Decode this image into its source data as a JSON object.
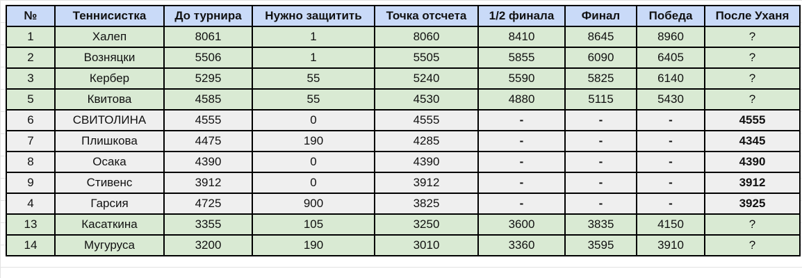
{
  "colors": {
    "header": "#c9daf8",
    "green_row": "#d9ead3",
    "gray_row": "#efefef"
  },
  "headers": [
    "№",
    "Теннисистка",
    "До турнира",
    "Нужно защитить",
    "Точка отсчета",
    "1/2 финала",
    "Финал",
    "Победа",
    "После Уханя"
  ],
  "rows": [
    {
      "style": "green",
      "cells": [
        "1",
        "Халеп",
        "8061",
        "1",
        "8060",
        "8410",
        "8645",
        "8960",
        "?"
      ]
    },
    {
      "style": "green",
      "cells": [
        "2",
        "Возняцки",
        "5506",
        "1",
        "5505",
        "5855",
        "6090",
        "6405",
        "?"
      ]
    },
    {
      "style": "green",
      "cells": [
        "3",
        "Кербер",
        "5295",
        "55",
        "5240",
        "5590",
        "5825",
        "6140",
        "?"
      ]
    },
    {
      "style": "green",
      "cells": [
        "5",
        "Квитова",
        "4585",
        "55",
        "4530",
        "4880",
        "5115",
        "5430",
        "?"
      ]
    },
    {
      "style": "gray",
      "cells": [
        "6",
        "СВИТОЛИНА",
        "4555",
        "0",
        "4555",
        "-",
        "-",
        "-",
        "4555"
      ]
    },
    {
      "style": "gray",
      "cells": [
        "7",
        "Плишкова",
        "4475",
        "190",
        "4285",
        "-",
        "-",
        "-",
        "4345"
      ]
    },
    {
      "style": "gray",
      "cells": [
        "8",
        "Осака",
        "4390",
        "0",
        "4390",
        "-",
        "-",
        "-",
        "4390"
      ]
    },
    {
      "style": "gray",
      "cells": [
        "9",
        "Стивенс",
        "3912",
        "0",
        "3912",
        "-",
        "-",
        "-",
        "3912"
      ]
    },
    {
      "style": "gray",
      "cells": [
        "4",
        "Гарсия",
        "4725",
        "900",
        "3825",
        "-",
        "-",
        "-",
        "3925"
      ]
    },
    {
      "style": "green",
      "cells": [
        "13",
        "Касаткина",
        "3355",
        "105",
        "3250",
        "3600",
        "3835",
        "4150",
        "?"
      ]
    },
    {
      "style": "green",
      "cells": [
        "14",
        "Мугуруса",
        "3200",
        "190",
        "3010",
        "3360",
        "3595",
        "3910",
        "?"
      ]
    }
  ]
}
